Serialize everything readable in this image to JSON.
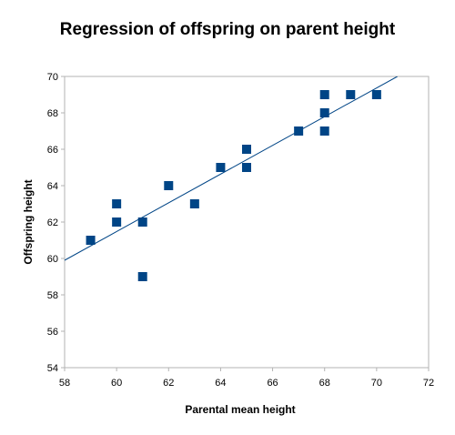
{
  "chart_data": {
    "type": "scatter",
    "title": "Regression of offspring on parent height",
    "xlabel": "Parental mean height",
    "ylabel": "Offspring height",
    "xlim": [
      58,
      72
    ],
    "ylim": [
      54,
      70
    ],
    "x_ticks": [
      58,
      60,
      62,
      64,
      66,
      68,
      70,
      72
    ],
    "y_ticks": [
      54,
      56,
      58,
      60,
      62,
      64,
      66,
      68,
      70
    ],
    "grid": false,
    "legend": "none",
    "marker": "square",
    "marker_color": "#004586",
    "series": [
      {
        "points": [
          {
            "x": 59,
            "y": 61
          },
          {
            "x": 60,
            "y": 62
          },
          {
            "x": 60,
            "y": 63
          },
          {
            "x": 61,
            "y": 59
          },
          {
            "x": 61,
            "y": 62
          },
          {
            "x": 62,
            "y": 64
          },
          {
            "x": 63,
            "y": 63
          },
          {
            "x": 64,
            "y": 65
          },
          {
            "x": 65,
            "y": 65
          },
          {
            "x": 65,
            "y": 66
          },
          {
            "x": 67,
            "y": 67
          },
          {
            "x": 68,
            "y": 67
          },
          {
            "x": 68,
            "y": 68
          },
          {
            "x": 68,
            "y": 69
          },
          {
            "x": 69,
            "y": 69
          },
          {
            "x": 70,
            "y": 69
          }
        ]
      }
    ],
    "trendline": {
      "type": "linear",
      "color": "#004586",
      "points": [
        {
          "x": 58,
          "y": 59.9
        },
        {
          "x": 70.8,
          "y": 70
        }
      ]
    }
  }
}
